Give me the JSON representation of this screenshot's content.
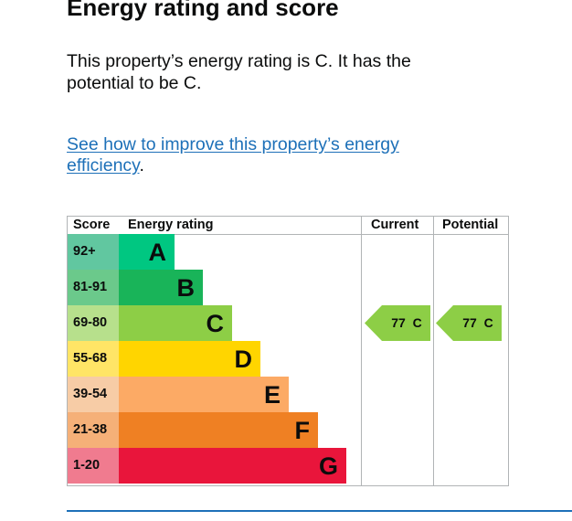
{
  "heading": "Energy rating and score",
  "summary": "This property’s energy rating is C. It has the potential to be C.",
  "improve_link": {
    "text": "See how to improve this property’s energy efficiency",
    "suffix": "."
  },
  "table": {
    "headers": {
      "score": "Score",
      "rating": "Energy rating",
      "current": "Current",
      "potential": "Potential"
    },
    "bands": [
      {
        "score": "92+",
        "letter": "A",
        "color": "#00c781",
        "scoreColor": "#61c7a0"
      },
      {
        "score": "81-91",
        "letter": "B",
        "color": "#19b459",
        "scoreColor": "#6bc98b"
      },
      {
        "score": "69-80",
        "letter": "C",
        "color": "#8dce46",
        "scoreColor": "#b7e08c"
      },
      {
        "score": "55-68",
        "letter": "D",
        "color": "#ffd500",
        "scoreColor": "#ffe566"
      },
      {
        "score": "39-54",
        "letter": "E",
        "color": "#fcaa65",
        "scoreColor": "#f7cca6"
      },
      {
        "score": "21-38",
        "letter": "F",
        "color": "#ef8023",
        "scoreColor": "#f5b078"
      },
      {
        "score": "1-20",
        "letter": "G",
        "color": "#e9153b",
        "scoreColor": "#f07b8f"
      }
    ],
    "current": {
      "score": 77,
      "letter": "C",
      "label": "77  C",
      "color": "#8dce46"
    },
    "potential": {
      "score": 77,
      "letter": "C",
      "label": "77  C",
      "color": "#8dce46"
    }
  }
}
